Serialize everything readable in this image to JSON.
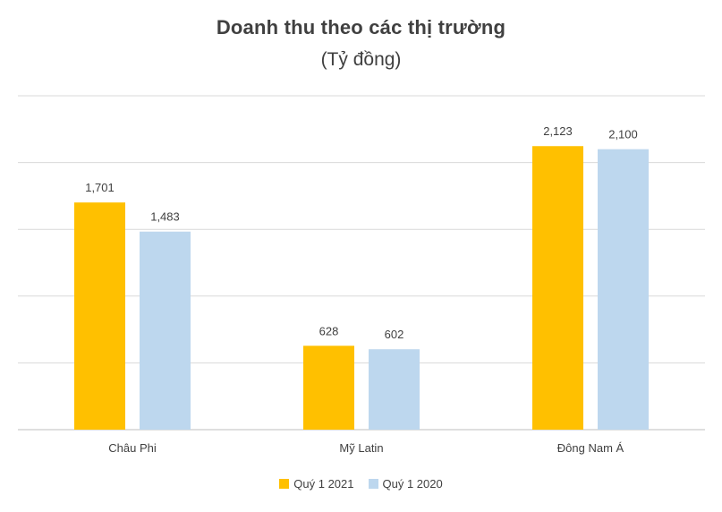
{
  "chart_data": {
    "type": "bar",
    "title": "Doanh thu theo các thị trường",
    "subtitle": "(Tỷ đồng)",
    "categories": [
      "Châu Phi",
      "Mỹ Latin",
      "Đông Nam Á"
    ],
    "series": [
      {
        "name": "Quý 1 2021",
        "color": "#FFC000",
        "values": [
          1701,
          628,
          2123
        ],
        "labels": [
          "1,701",
          "628",
          "2,123"
        ]
      },
      {
        "name": "Quý 1 2020",
        "color": "#BDD7EE",
        "values": [
          1483,
          602,
          2100
        ],
        "labels": [
          "1,483",
          "602",
          "2,100"
        ]
      }
    ],
    "xlabel": "",
    "ylabel": "",
    "ylim": [
      0,
      2500
    ],
    "gridlines": true,
    "y_tick_labels_visible": false,
    "legend_position": "bottom"
  }
}
